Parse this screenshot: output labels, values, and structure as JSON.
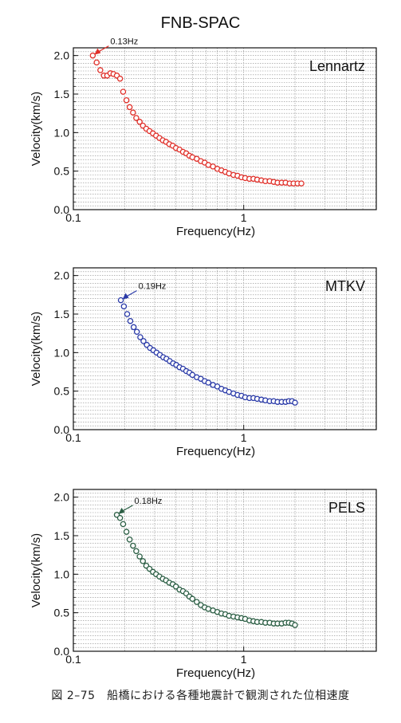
{
  "figure": {
    "title": "FNB-SPAC",
    "caption": "図 2–75　船橋における各種地震計で観測された位相速度"
  },
  "chart_data": [
    {
      "type": "scatter",
      "label": "Lennartz",
      "xlabel": "Frequency(Hz)",
      "ylabel": "Velocity(km/s)",
      "xscale": "log",
      "xlim": [
        0.1,
        6
      ],
      "ylim": [
        0,
        2.1
      ],
      "xticks": [
        0.1,
        1
      ],
      "xtick_labels": [
        "0.1",
        "1"
      ],
      "yticks": [
        0,
        0.5,
        1,
        1.5,
        2
      ],
      "ytick_labels": [
        "0.0",
        "0.5",
        "1.0",
        "1.5",
        "2.0"
      ],
      "grid": true,
      "color": "#e0302a",
      "annotation": {
        "text": "0.13Hz",
        "x": 0.13,
        "y": 2.0
      },
      "x": [
        0.13,
        0.137,
        0.144,
        0.151,
        0.158,
        0.165,
        0.172,
        0.18,
        0.188,
        0.196,
        0.205,
        0.214,
        0.224,
        0.234,
        0.245,
        0.256,
        0.268,
        0.28,
        0.293,
        0.306,
        0.32,
        0.335,
        0.35,
        0.366,
        0.383,
        0.4,
        0.42,
        0.44,
        0.46,
        0.48,
        0.5,
        0.53,
        0.56,
        0.59,
        0.62,
        0.66,
        0.7,
        0.74,
        0.78,
        0.82,
        0.87,
        0.92,
        0.97,
        1.02,
        1.08,
        1.14,
        1.2,
        1.27,
        1.34,
        1.42,
        1.5,
        1.58,
        1.67,
        1.76,
        1.86,
        1.96,
        2.07,
        2.18
      ],
      "y": [
        2.0,
        1.91,
        1.81,
        1.74,
        1.74,
        1.77,
        1.76,
        1.74,
        1.7,
        1.53,
        1.42,
        1.33,
        1.26,
        1.19,
        1.14,
        1.09,
        1.05,
        1.02,
        0.99,
        0.96,
        0.93,
        0.9,
        0.88,
        0.85,
        0.83,
        0.8,
        0.78,
        0.75,
        0.73,
        0.7,
        0.68,
        0.66,
        0.63,
        0.61,
        0.58,
        0.56,
        0.53,
        0.51,
        0.49,
        0.47,
        0.45,
        0.44,
        0.42,
        0.41,
        0.4,
        0.4,
        0.39,
        0.38,
        0.37,
        0.37,
        0.36,
        0.35,
        0.35,
        0.35,
        0.34,
        0.34,
        0.34,
        0.34
      ]
    },
    {
      "type": "scatter",
      "label": "MTKV",
      "xlabel": "Frequency(Hz)",
      "ylabel": "Velocity(km/s)",
      "xscale": "log",
      "xlim": [
        0.1,
        6
      ],
      "ylim": [
        0,
        2.1
      ],
      "xticks": [
        0.1,
        1
      ],
      "xtick_labels": [
        "0.1",
        "1"
      ],
      "yticks": [
        0,
        0.5,
        1,
        1.5,
        2
      ],
      "ytick_labels": [
        "0.0",
        "0.5",
        "1.0",
        "1.5",
        "2.0"
      ],
      "grid": true,
      "color": "#2a3aa8",
      "annotation": {
        "text": "0.19Hz",
        "x": 0.19,
        "y": 1.68
      },
      "x": [
        0.19,
        0.198,
        0.207,
        0.216,
        0.226,
        0.236,
        0.247,
        0.258,
        0.27,
        0.282,
        0.295,
        0.308,
        0.322,
        0.337,
        0.352,
        0.368,
        0.385,
        0.402,
        0.42,
        0.44,
        0.46,
        0.48,
        0.5,
        0.53,
        0.56,
        0.59,
        0.62,
        0.66,
        0.7,
        0.74,
        0.78,
        0.82,
        0.87,
        0.92,
        0.97,
        1.02,
        1.08,
        1.14,
        1.2,
        1.27,
        1.34,
        1.42,
        1.5,
        1.58,
        1.67,
        1.76,
        1.84,
        1.92,
        2.0
      ],
      "y": [
        1.68,
        1.6,
        1.5,
        1.41,
        1.33,
        1.27,
        1.2,
        1.15,
        1.1,
        1.06,
        1.03,
        1.0,
        0.97,
        0.94,
        0.92,
        0.89,
        0.86,
        0.84,
        0.81,
        0.79,
        0.76,
        0.74,
        0.71,
        0.68,
        0.66,
        0.63,
        0.61,
        0.58,
        0.56,
        0.53,
        0.51,
        0.49,
        0.47,
        0.45,
        0.44,
        0.42,
        0.41,
        0.41,
        0.4,
        0.39,
        0.38,
        0.37,
        0.37,
        0.36,
        0.36,
        0.36,
        0.37,
        0.37,
        0.35
      ]
    },
    {
      "type": "scatter",
      "label": "PELS",
      "xlabel": "Frequency(Hz)",
      "ylabel": "Velocity(km/s)",
      "xscale": "log",
      "xlim": [
        0.1,
        6
      ],
      "ylim": [
        0,
        2.1
      ],
      "xticks": [
        0.1,
        1
      ],
      "xtick_labels": [
        "0.1",
        "1"
      ],
      "yticks": [
        0,
        0.5,
        1,
        1.5,
        2
      ],
      "ytick_labels": [
        "0.0",
        "0.5",
        "1.0",
        "1.5",
        "2.0"
      ],
      "grid": true,
      "color": "#2b5e44",
      "annotation": {
        "text": "0.18Hz",
        "x": 0.18,
        "y": 1.77
      },
      "x": [
        0.18,
        0.188,
        0.196,
        0.205,
        0.214,
        0.224,
        0.234,
        0.245,
        0.256,
        0.268,
        0.28,
        0.293,
        0.306,
        0.32,
        0.335,
        0.35,
        0.366,
        0.383,
        0.4,
        0.42,
        0.44,
        0.46,
        0.48,
        0.5,
        0.53,
        0.56,
        0.59,
        0.62,
        0.66,
        0.7,
        0.74,
        0.78,
        0.82,
        0.87,
        0.92,
        0.97,
        1.02,
        1.08,
        1.14,
        1.2,
        1.27,
        1.34,
        1.42,
        1.5,
        1.58,
        1.67,
        1.76,
        1.84,
        1.92,
        2.0
      ],
      "y": [
        1.77,
        1.73,
        1.65,
        1.55,
        1.45,
        1.37,
        1.3,
        1.23,
        1.17,
        1.11,
        1.07,
        1.03,
        1.0,
        0.97,
        0.94,
        0.92,
        0.89,
        0.87,
        0.84,
        0.8,
        0.78,
        0.75,
        0.71,
        0.68,
        0.64,
        0.6,
        0.57,
        0.55,
        0.53,
        0.51,
        0.49,
        0.48,
        0.46,
        0.45,
        0.44,
        0.43,
        0.42,
        0.4,
        0.39,
        0.38,
        0.38,
        0.37,
        0.37,
        0.36,
        0.36,
        0.36,
        0.37,
        0.37,
        0.36,
        0.34
      ]
    }
  ]
}
